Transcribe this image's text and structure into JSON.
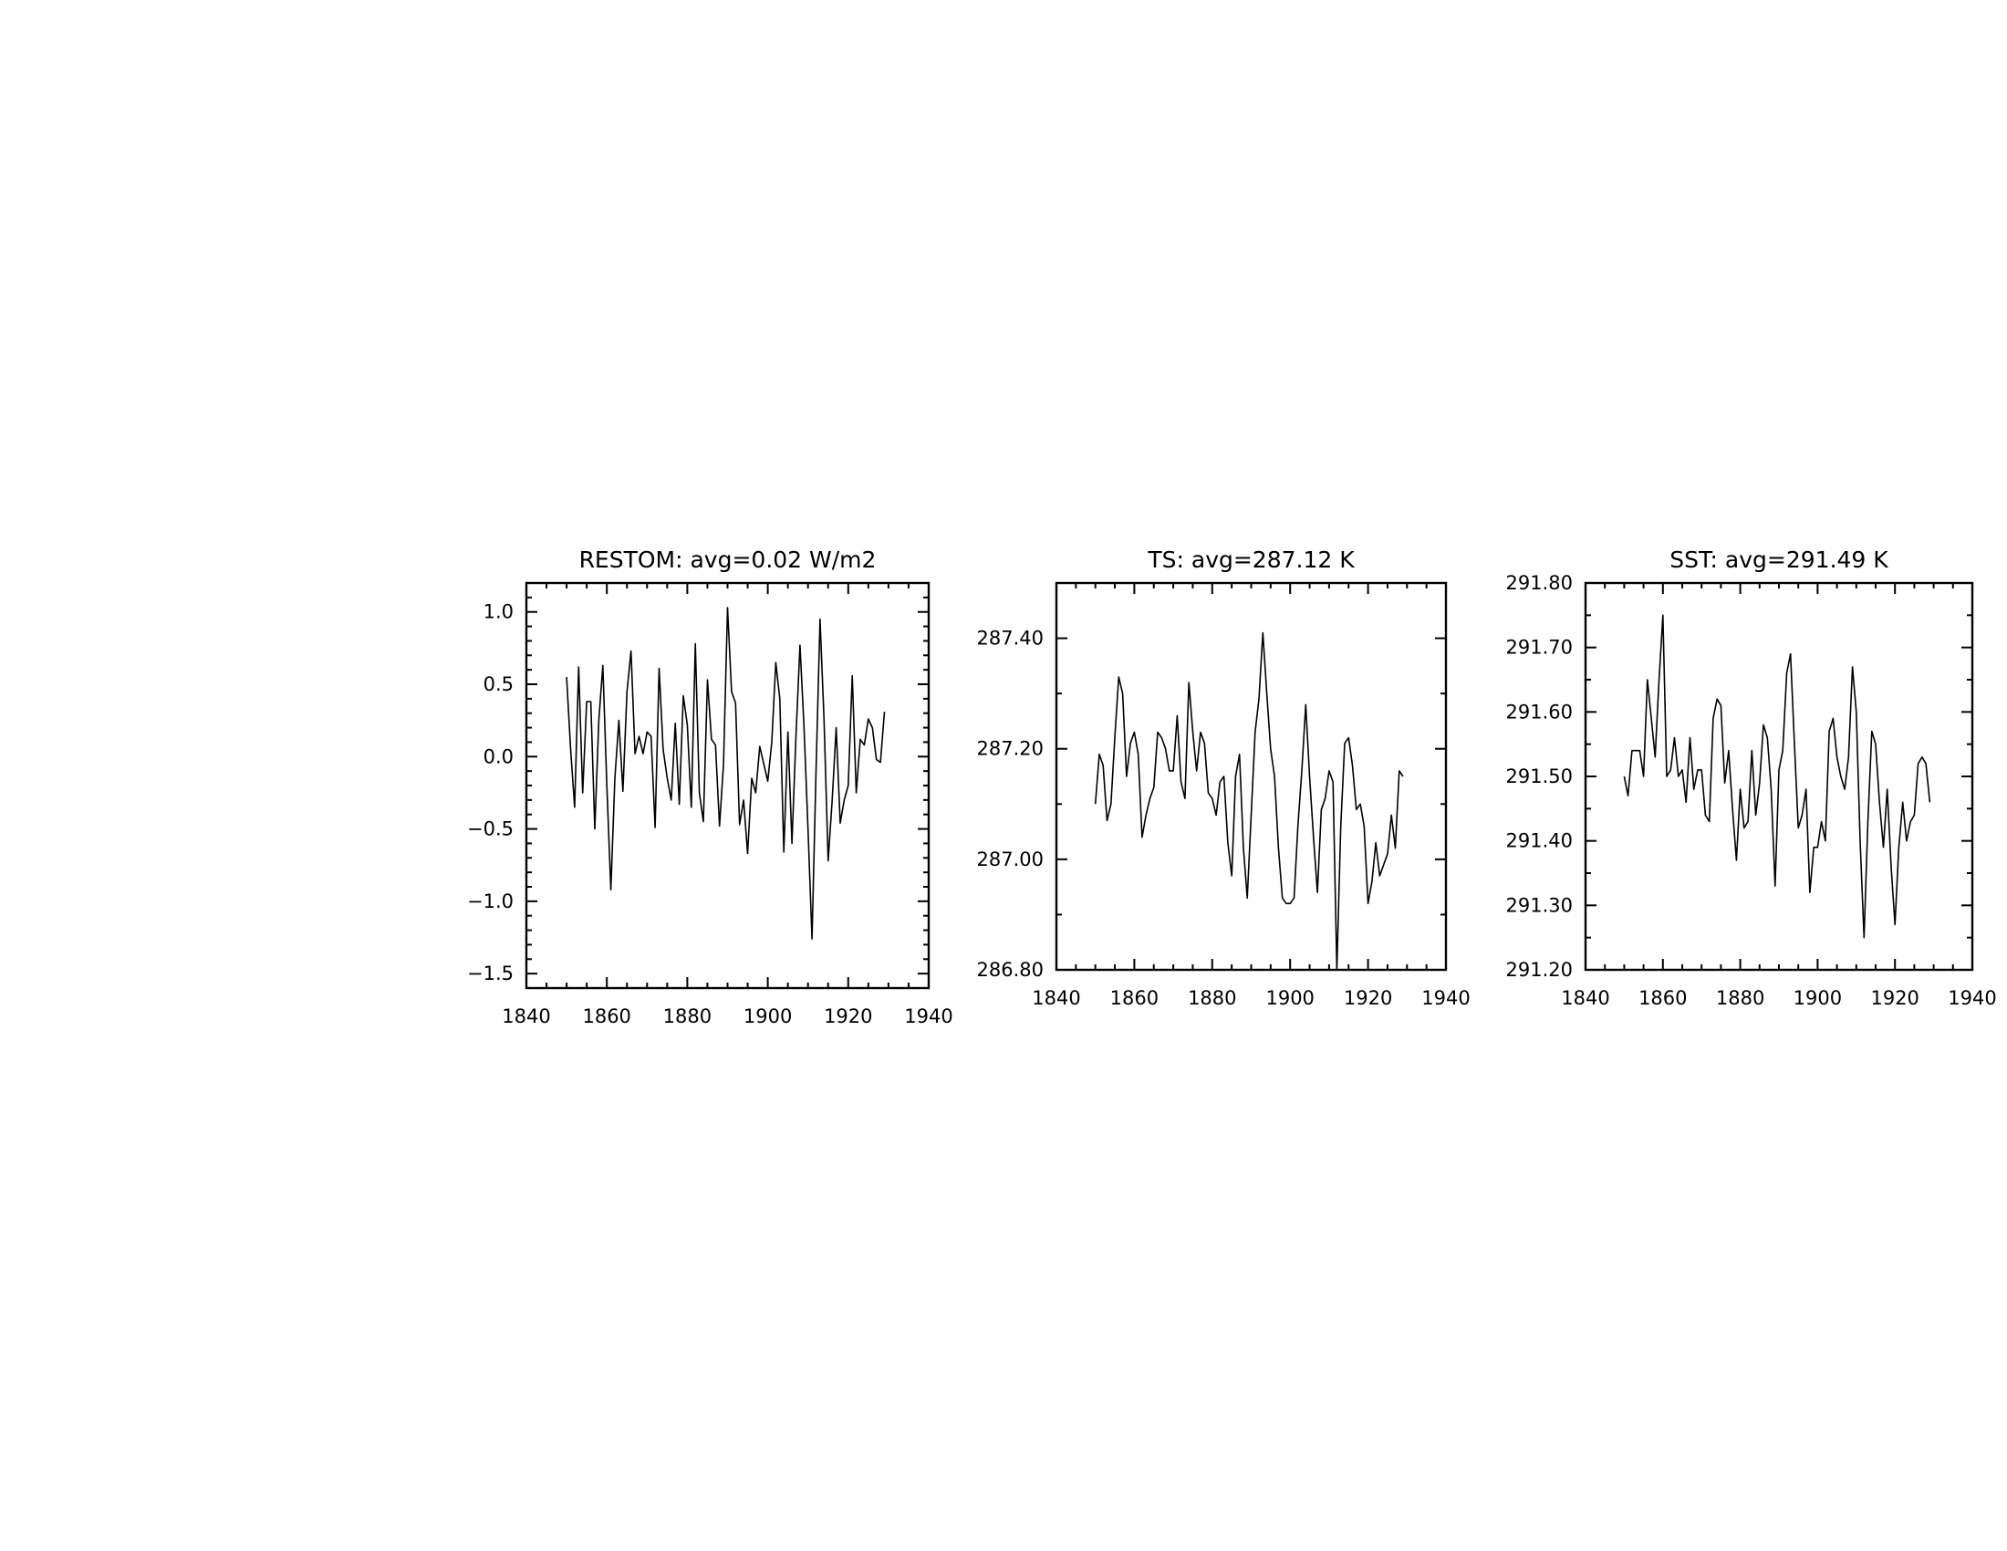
{
  "chart_data": [
    {
      "type": "line",
      "title": "RESTOM: avg=0.02 W/m2",
      "xlabel": "",
      "ylabel": "",
      "xlim": [
        1840,
        1940
      ],
      "ylim": [
        -1.6,
        1.2
      ],
      "xticks": [
        1840,
        1860,
        1880,
        1900,
        1920,
        1940
      ],
      "xtick_labels": [
        "1840",
        "1860",
        "1880",
        "1900",
        "1920",
        "1940"
      ],
      "yticks": [
        -1.5,
        -1.0,
        -0.5,
        0.0,
        0.5,
        1.0
      ],
      "ytick_labels": [
        "−1.5",
        "−1.0",
        "−0.5",
        "0.0",
        "0.5",
        "1.0"
      ],
      "yminor_step": 0.1,
      "xminor_step": 5,
      "grid": false,
      "series": [
        {
          "x_start": 1850,
          "x_step": 1,
          "values": [
            0.55,
            0.05,
            -0.35,
            0.62,
            -0.25,
            0.38,
            0.38,
            -0.5,
            0.25,
            0.63,
            -0.2,
            -0.92,
            -0.15,
            0.25,
            -0.24,
            0.45,
            0.73,
            0.02,
            0.14,
            0.02,
            0.17,
            0.14,
            -0.49,
            0.61,
            0.05,
            -0.15,
            -0.3,
            0.23,
            -0.33,
            0.42,
            0.22,
            -0.35,
            0.78,
            -0.25,
            -0.45,
            0.53,
            0.12,
            0.08,
            -0.48,
            -0.05,
            1.03,
            0.45,
            0.37,
            -0.47,
            -0.3,
            -0.67,
            -0.15,
            -0.25,
            0.07,
            -0.05,
            -0.17,
            0.1,
            0.65,
            0.4,
            -0.66,
            0.17,
            -0.6,
            0.14,
            0.77,
            0.21,
            -0.5,
            -1.26,
            -0.1,
            0.95,
            0.25,
            -0.72,
            -0.3,
            0.2,
            -0.46,
            -0.3,
            -0.2,
            0.56,
            -0.25,
            0.12,
            0.08,
            0.26,
            0.2,
            -0.02,
            -0.04,
            0.31
          ]
        }
      ]
    },
    {
      "type": "line",
      "title": "TS: avg=287.12 K",
      "xlabel": "",
      "ylabel": "",
      "xlim": [
        1840,
        1940
      ],
      "ylim": [
        286.8,
        287.5
      ],
      "xticks": [
        1840,
        1860,
        1880,
        1900,
        1920,
        1940
      ],
      "xtick_labels": [
        "1840",
        "1860",
        "1880",
        "1900",
        "1920",
        "1940"
      ],
      "yticks": [
        286.8,
        287.0,
        287.2,
        287.4
      ],
      "ytick_labels": [
        "286.80",
        "287.00",
        "287.20",
        "287.40"
      ],
      "yminor_step": 0.1,
      "xminor_step": 5,
      "grid": false,
      "series": [
        {
          "x_start": 1850,
          "x_step": 1,
          "values": [
            287.1,
            287.19,
            287.17,
            287.07,
            287.1,
            287.22,
            287.33,
            287.3,
            287.15,
            287.21,
            287.23,
            287.19,
            287.04,
            287.08,
            287.11,
            287.13,
            287.23,
            287.22,
            287.2,
            287.16,
            287.16,
            287.26,
            287.14,
            287.11,
            287.32,
            287.23,
            287.16,
            287.23,
            287.21,
            287.12,
            287.11,
            287.08,
            287.14,
            287.15,
            287.03,
            286.97,
            287.15,
            287.19,
            287.02,
            286.93,
            287.08,
            287.23,
            287.29,
            287.41,
            287.3,
            287.2,
            287.15,
            287.02,
            286.93,
            286.92,
            286.92,
            286.93,
            287.06,
            287.16,
            287.28,
            287.15,
            287.04,
            286.94,
            287.09,
            287.11,
            287.16,
            287.14,
            286.8,
            287.06,
            287.21,
            287.22,
            287.17,
            287.09,
            287.1,
            287.06,
            286.92,
            286.96,
            287.03,
            286.97,
            286.99,
            287.01,
            287.08,
            287.02,
            287.16,
            287.15
          ]
        }
      ]
    },
    {
      "type": "line",
      "title": "SST: avg=291.49 K",
      "xlabel": "",
      "ylabel": "",
      "xlim": [
        1840,
        1940
      ],
      "ylim": [
        291.2,
        291.8
      ],
      "xticks": [
        1840,
        1860,
        1880,
        1900,
        1920,
        1940
      ],
      "xtick_labels": [
        "1840",
        "1860",
        "1880",
        "1900",
        "1920",
        "1940"
      ],
      "yticks": [
        291.2,
        291.3,
        291.4,
        291.5,
        291.6,
        291.7,
        291.8
      ],
      "ytick_labels": [
        "291.20",
        "291.30",
        "291.40",
        "291.50",
        "291.60",
        "291.70",
        "291.80"
      ],
      "yminor_step": 0.05,
      "xminor_step": 5,
      "grid": false,
      "series": [
        {
          "x_start": 1850,
          "x_step": 1,
          "values": [
            291.5,
            291.47,
            291.54,
            291.54,
            291.54,
            291.5,
            291.65,
            291.59,
            291.53,
            291.65,
            291.75,
            291.5,
            291.51,
            291.56,
            291.5,
            291.51,
            291.46,
            291.56,
            291.48,
            291.51,
            291.51,
            291.44,
            291.43,
            291.59,
            291.62,
            291.61,
            291.49,
            291.54,
            291.45,
            291.37,
            291.48,
            291.42,
            291.43,
            291.54,
            291.44,
            291.49,
            291.58,
            291.56,
            291.48,
            291.33,
            291.51,
            291.54,
            291.66,
            291.69,
            291.55,
            291.42,
            291.44,
            291.48,
            291.32,
            291.39,
            291.39,
            291.43,
            291.4,
            291.57,
            291.59,
            291.53,
            291.5,
            291.48,
            291.53,
            291.67,
            291.6,
            291.4,
            291.25,
            291.43,
            291.57,
            291.55,
            291.46,
            291.39,
            291.48,
            291.36,
            291.27,
            291.39,
            291.46,
            291.4,
            291.43,
            291.44,
            291.52,
            291.53,
            291.52,
            291.46
          ]
        }
      ]
    }
  ]
}
